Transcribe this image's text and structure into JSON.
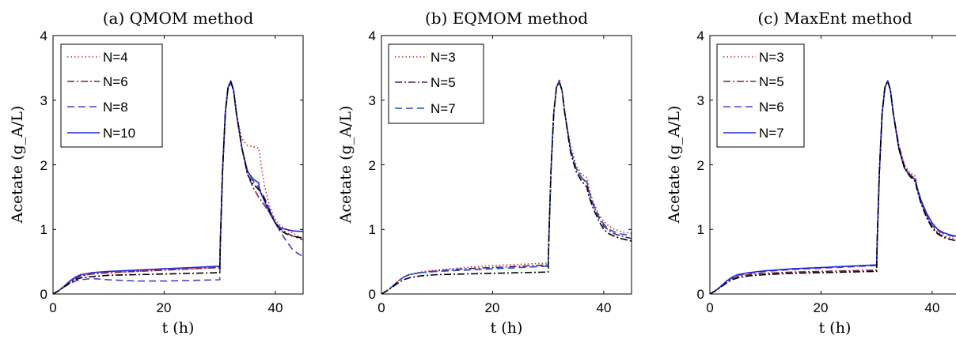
{
  "chart_data": [
    {
      "type": "line",
      "title": "(a) QMOM method",
      "xlabel": "t (h)",
      "ylabel": "Acetate (g_A/L)",
      "xlim": [
        0,
        45
      ],
      "ylim": [
        0,
        4
      ],
      "xticks": [
        "0",
        "20",
        "40"
      ],
      "yticks": [
        "0",
        "1",
        "2",
        "3",
        "4"
      ],
      "legend_position": "top-left",
      "grid": false,
      "series": [
        {
          "name": "N=4",
          "color": "#d62728",
          "dash": "dotted",
          "x": [
            0,
            1,
            2,
            3,
            4,
            5,
            7,
            10,
            15,
            20,
            25,
            30,
            30.1,
            30.5,
            31,
            31.5,
            32,
            32.5,
            33,
            34,
            35,
            36,
            37,
            38,
            39,
            40,
            41,
            42,
            43,
            44,
            45
          ],
          "y": [
            0,
            0.05,
            0.12,
            0.19,
            0.24,
            0.28,
            0.31,
            0.33,
            0.35,
            0.37,
            0.39,
            0.41,
            0.8,
            1.9,
            2.8,
            3.2,
            3.27,
            3.15,
            2.8,
            2.4,
            2.3,
            2.28,
            2.26,
            1.7,
            1.35,
            1.15,
            1.05,
            1.0,
            0.95,
            0.9,
            0.85
          ]
        },
        {
          "name": "N=6",
          "color": "#7b1f4a",
          "dash": "dashdot",
          "x": [
            0,
            1,
            2,
            3,
            4,
            5,
            7,
            10,
            15,
            20,
            25,
            30,
            30.1,
            30.5,
            31,
            31.5,
            32,
            32.5,
            33,
            34,
            35,
            36,
            37,
            38,
            39,
            40,
            41,
            42,
            43,
            44,
            45
          ],
          "y": [
            0,
            0.05,
            0.12,
            0.19,
            0.24,
            0.28,
            0.31,
            0.33,
            0.35,
            0.37,
            0.39,
            0.41,
            0.8,
            1.9,
            2.8,
            3.2,
            3.27,
            3.15,
            2.8,
            2.25,
            1.85,
            1.65,
            1.5,
            1.38,
            1.25,
            1.1,
            1.0,
            0.95,
            0.9,
            0.87,
            0.84
          ]
        },
        {
          "name": "N=8",
          "color": "#4b3bc9",
          "dash": "dashed",
          "x": [
            0,
            1,
            2,
            3,
            4,
            5,
            7,
            10,
            15,
            20,
            25,
            30,
            30.1,
            30.5,
            31,
            31.5,
            32,
            32.5,
            33,
            34,
            35,
            36,
            37,
            38,
            39,
            40,
            41,
            42,
            43,
            44,
            45
          ],
          "y": [
            0,
            0.05,
            0.11,
            0.16,
            0.2,
            0.22,
            0.24,
            0.22,
            0.2,
            0.2,
            0.21,
            0.22,
            0.8,
            1.9,
            2.8,
            3.2,
            3.27,
            3.15,
            2.8,
            2.25,
            1.9,
            1.75,
            1.65,
            1.5,
            1.3,
            1.1,
            0.95,
            0.82,
            0.7,
            0.63,
            0.58
          ]
        },
        {
          "name": "N=10",
          "color": "#1f2ad6",
          "dash": "solid",
          "x": [
            0,
            1,
            2,
            3,
            4,
            5,
            7,
            10,
            15,
            20,
            25,
            30,
            30.1,
            30.5,
            31,
            31.5,
            32,
            32.5,
            33,
            34,
            35,
            36,
            37,
            37.2,
            38,
            39,
            40,
            41,
            42,
            43,
            44,
            45
          ],
          "y": [
            0,
            0.05,
            0.12,
            0.2,
            0.26,
            0.3,
            0.33,
            0.35,
            0.37,
            0.39,
            0.41,
            0.43,
            0.8,
            1.9,
            2.8,
            3.2,
            3.3,
            3.15,
            2.8,
            2.25,
            1.9,
            1.78,
            1.72,
            1.6,
            1.45,
            1.25,
            1.1,
            1.02,
            1.0,
            0.98,
            0.97,
            0.97
          ]
        },
        {
          "name": "",
          "color": "#000000",
          "dash": "dashdot",
          "x": [
            0,
            1,
            2,
            3,
            4,
            5,
            7,
            10,
            15,
            20,
            25,
            30,
            30.1,
            30.5,
            31,
            31.5,
            32,
            32.5,
            33,
            34,
            35,
            36,
            37,
            38,
            39,
            40,
            41,
            42,
            43,
            44,
            45
          ],
          "y": [
            0,
            0.05,
            0.11,
            0.17,
            0.22,
            0.25,
            0.27,
            0.29,
            0.3,
            0.31,
            0.32,
            0.33,
            0.8,
            1.9,
            2.8,
            3.2,
            3.28,
            3.15,
            2.8,
            2.25,
            1.85,
            1.7,
            1.62,
            1.48,
            1.28,
            1.1,
            0.98,
            0.93,
            0.9,
            0.88,
            0.87
          ]
        }
      ]
    },
    {
      "type": "line",
      "title": "(b) EQMOM method",
      "xlabel": "t (h)",
      "ylabel": "Acetate (g_A/L)",
      "xlim": [
        0,
        45
      ],
      "ylim": [
        0,
        4
      ],
      "xticks": [
        "0",
        "20",
        "40"
      ],
      "yticks": [
        "0",
        "1",
        "2",
        "3",
        "4"
      ],
      "legend_position": "top-left",
      "grid": false,
      "series": [
        {
          "name": "N=3",
          "color": "#d62728",
          "dash": "dotted",
          "x": [
            0,
            1,
            2,
            3,
            4,
            5,
            7,
            10,
            15,
            20,
            25,
            30,
            30.1,
            30.5,
            31,
            31.5,
            32,
            32.5,
            33,
            34,
            35,
            36,
            37,
            37.2,
            38,
            39,
            40,
            41,
            42,
            43,
            44,
            45
          ],
          "y": [
            0,
            0.05,
            0.12,
            0.2,
            0.26,
            0.3,
            0.34,
            0.37,
            0.41,
            0.44,
            0.46,
            0.48,
            0.8,
            1.9,
            2.8,
            3.2,
            3.33,
            3.15,
            2.8,
            2.3,
            2.0,
            1.85,
            1.8,
            1.7,
            1.45,
            1.25,
            1.12,
            1.05,
            1.0,
            0.97,
            0.95,
            0.94
          ]
        },
        {
          "name": "N=5",
          "color": "#4a1f6b",
          "dash": "dashdot",
          "x": [
            0,
            1,
            2,
            3,
            4,
            5,
            7,
            10,
            15,
            20,
            25,
            30,
            30.1,
            30.5,
            31,
            31.5,
            32,
            32.5,
            33,
            34,
            35,
            36,
            37,
            37.2,
            38,
            39,
            40,
            41,
            42,
            43,
            44,
            45
          ],
          "y": [
            0,
            0.05,
            0.12,
            0.2,
            0.26,
            0.3,
            0.33,
            0.36,
            0.39,
            0.41,
            0.43,
            0.45,
            0.8,
            1.9,
            2.8,
            3.2,
            3.3,
            3.15,
            2.8,
            2.25,
            1.95,
            1.8,
            1.72,
            1.62,
            1.4,
            1.2,
            1.05,
            0.98,
            0.93,
            0.9,
            0.88,
            0.86
          ]
        },
        {
          "name": "N=7",
          "color": "#1f4fd6",
          "dash": "dashed",
          "x": [
            0,
            1,
            2,
            3,
            4,
            5,
            7,
            10,
            15,
            20,
            25,
            30,
            30.1,
            30.5,
            31,
            31.5,
            32,
            32.5,
            33,
            34,
            35,
            36,
            37,
            37.2,
            38,
            39,
            40,
            41,
            42,
            43,
            44,
            45
          ],
          "y": [
            0,
            0.05,
            0.12,
            0.2,
            0.26,
            0.3,
            0.33,
            0.35,
            0.37,
            0.39,
            0.41,
            0.43,
            0.8,
            1.9,
            2.8,
            3.2,
            3.3,
            3.15,
            2.8,
            2.25,
            1.95,
            1.8,
            1.73,
            1.63,
            1.42,
            1.22,
            1.08,
            1.0,
            0.96,
            0.93,
            0.92,
            0.91
          ]
        },
        {
          "name": "",
          "color": "#000000",
          "dash": "dashdot",
          "x": [
            0,
            1,
            2,
            3,
            4,
            5,
            7,
            10,
            15,
            20,
            25,
            30,
            30.1,
            30.5,
            31,
            31.5,
            32,
            32.5,
            33,
            34,
            35,
            36,
            37,
            37.2,
            38,
            39,
            40,
            41,
            42,
            43,
            44,
            45
          ],
          "y": [
            0,
            0.05,
            0.11,
            0.17,
            0.22,
            0.25,
            0.28,
            0.3,
            0.31,
            0.32,
            0.33,
            0.34,
            0.8,
            1.9,
            2.8,
            3.2,
            3.28,
            3.15,
            2.8,
            2.2,
            1.9,
            1.75,
            1.65,
            1.55,
            1.35,
            1.15,
            1.0,
            0.93,
            0.89,
            0.86,
            0.84,
            0.82
          ]
        }
      ]
    },
    {
      "type": "line",
      "title": "(c) MaxEnt method",
      "xlabel": "t (h)",
      "ylabel": "Acetate (g_A/L)",
      "xlim": [
        0,
        45
      ],
      "ylim": [
        0,
        4
      ],
      "xticks": [
        "0",
        "20",
        "40"
      ],
      "yticks": [
        "0",
        "1",
        "2",
        "3",
        "4"
      ],
      "legend_position": "top-left",
      "grid": false,
      "series": [
        {
          "name": "N=3",
          "color": "#d62728",
          "dash": "dotted",
          "x": [
            0,
            1,
            2,
            3,
            4,
            5,
            7,
            10,
            15,
            20,
            25,
            30,
            30.1,
            30.5,
            31,
            31.5,
            32,
            32.5,
            33,
            34,
            35,
            36,
            37,
            37.2,
            38,
            39,
            40,
            41,
            42,
            43,
            44,
            45
          ],
          "y": [
            0,
            0.05,
            0.12,
            0.2,
            0.26,
            0.3,
            0.33,
            0.36,
            0.39,
            0.41,
            0.43,
            0.45,
            0.8,
            1.9,
            2.8,
            3.2,
            3.3,
            3.15,
            2.8,
            2.3,
            2.0,
            1.88,
            1.82,
            1.7,
            1.45,
            1.22,
            1.05,
            0.96,
            0.91,
            0.88,
            0.86,
            0.85
          ]
        },
        {
          "name": "N=5",
          "color": "#7b1f4a",
          "dash": "dashdot",
          "x": [
            0,
            1,
            2,
            3,
            4,
            5,
            7,
            10,
            15,
            20,
            25,
            30,
            30.1,
            30.5,
            31,
            31.5,
            32,
            32.5,
            33,
            34,
            35,
            36,
            37,
            37.2,
            38,
            39,
            40,
            41,
            42,
            43,
            44,
            45
          ],
          "y": [
            0,
            0.05,
            0.11,
            0.18,
            0.23,
            0.27,
            0.3,
            0.32,
            0.34,
            0.35,
            0.36,
            0.37,
            0.8,
            1.9,
            2.8,
            3.2,
            3.3,
            3.15,
            2.8,
            2.3,
            1.98,
            1.85,
            1.78,
            1.68,
            1.42,
            1.2,
            1.03,
            0.94,
            0.89,
            0.85,
            0.83,
            0.81
          ]
        },
        {
          "name": "N=6",
          "color": "#5a3bc9",
          "dash": "dashed",
          "x": [
            0,
            1,
            2,
            3,
            4,
            5,
            7,
            10,
            15,
            20,
            25,
            30,
            30.1,
            30.5,
            31,
            31.5,
            32,
            32.5,
            33,
            34,
            35,
            36,
            37,
            37.2,
            38,
            39,
            40,
            41,
            42,
            43,
            44,
            45
          ],
          "y": [
            0,
            0.05,
            0.12,
            0.19,
            0.25,
            0.29,
            0.32,
            0.35,
            0.38,
            0.4,
            0.42,
            0.44,
            0.8,
            1.9,
            2.8,
            3.2,
            3.3,
            3.15,
            2.8,
            2.25,
            1.95,
            1.82,
            1.75,
            1.65,
            1.42,
            1.22,
            1.06,
            0.98,
            0.94,
            0.91,
            0.89,
            0.88
          ]
        },
        {
          "name": "N=7",
          "color": "#1f2ad6",
          "dash": "solid",
          "x": [
            0,
            1,
            2,
            3,
            4,
            5,
            7,
            10,
            15,
            20,
            25,
            30,
            30.1,
            30.5,
            31,
            31.5,
            32,
            32.5,
            33,
            34,
            35,
            36,
            37,
            37.2,
            38,
            39,
            40,
            41,
            42,
            43,
            44,
            45
          ],
          "y": [
            0,
            0.05,
            0.12,
            0.2,
            0.26,
            0.3,
            0.33,
            0.36,
            0.39,
            0.41,
            0.43,
            0.45,
            0.8,
            1.9,
            2.8,
            3.2,
            3.3,
            3.15,
            2.8,
            2.25,
            1.95,
            1.83,
            1.77,
            1.67,
            1.45,
            1.25,
            1.1,
            1.0,
            0.95,
            0.92,
            0.9,
            0.89
          ]
        },
        {
          "name": "",
          "color": "#000000",
          "dash": "dashdot",
          "x": [
            0,
            1,
            2,
            3,
            4,
            5,
            7,
            10,
            15,
            20,
            25,
            30,
            30.1,
            30.5,
            31,
            31.5,
            32,
            32.5,
            33,
            34,
            35,
            36,
            37,
            37.2,
            38,
            39,
            40,
            41,
            42,
            43,
            44,
            45
          ],
          "y": [
            0,
            0.05,
            0.11,
            0.17,
            0.22,
            0.25,
            0.28,
            0.3,
            0.32,
            0.33,
            0.34,
            0.35,
            0.8,
            1.9,
            2.8,
            3.2,
            3.29,
            3.15,
            2.8,
            2.25,
            1.95,
            1.82,
            1.74,
            1.64,
            1.4,
            1.18,
            1.02,
            0.93,
            0.88,
            0.85,
            0.83,
            0.82
          ]
        }
      ]
    }
  ]
}
